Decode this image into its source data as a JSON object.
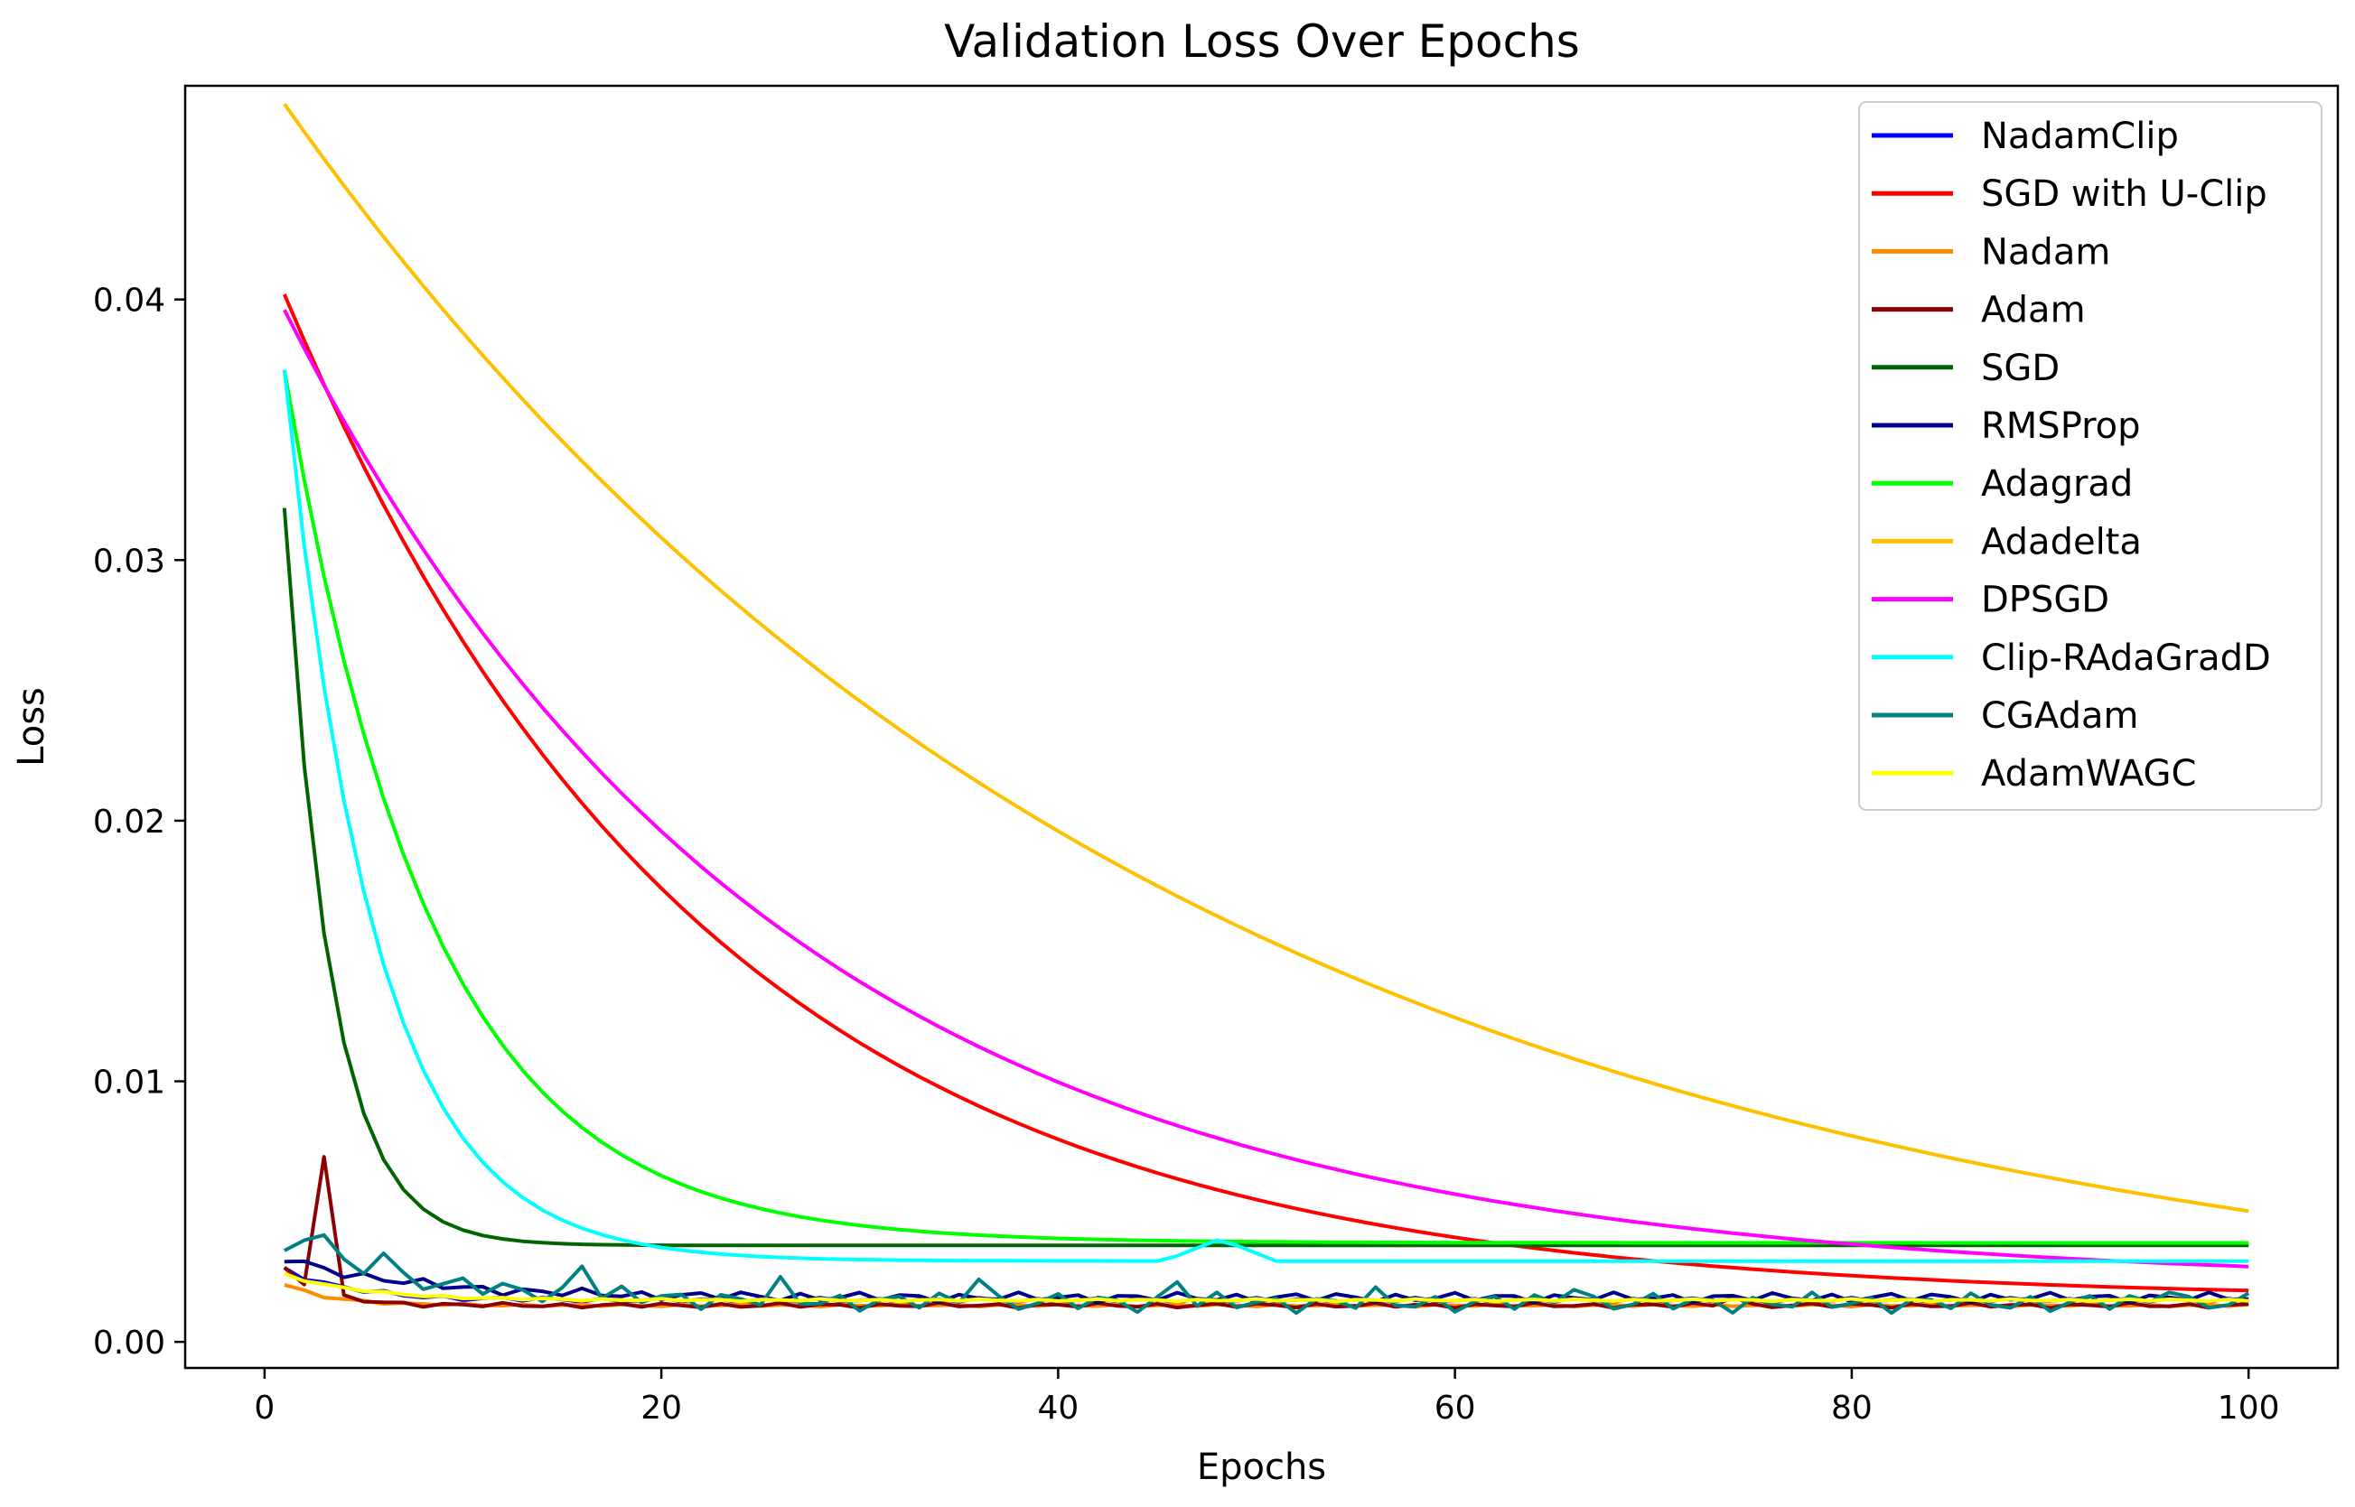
{
  "chart_data": {
    "type": "line",
    "title": "Validation Loss Over Epochs",
    "xlabel": "Epochs",
    "ylabel": "Loss",
    "xlim": [
      -4,
      104.5
    ],
    "ylim": [
      -0.001,
      0.0482
    ],
    "xticks": [
      0,
      20,
      40,
      60,
      80,
      100
    ],
    "yticks": [
      0.0,
      0.01,
      0.02,
      0.03,
      0.04
    ],
    "xtick_labels": [
      "0",
      "20",
      "40",
      "60",
      "80",
      "100"
    ],
    "ytick_labels": [
      "0.00",
      "0.01",
      "0.02",
      "0.03",
      "0.04"
    ],
    "legend_position": "top-right",
    "grid": false,
    "series": [
      {
        "name": "NadamClip",
        "color": "#0000ff",
        "model": "flat",
        "start": 0.0028,
        "end": 0.0016,
        "k": 0.3,
        "noise": 0.0001,
        "spikes": []
      },
      {
        "name": "SGD with U-Clip",
        "color": "#ff0000",
        "model": "exp",
        "start": 0.0402,
        "floor": 0.0016,
        "k": 0.047,
        "noise": 0,
        "spikes": []
      },
      {
        "name": "Nadam",
        "color": "#ff8c00",
        "model": "flat",
        "start": 0.0022,
        "end": 0.0014,
        "k": 0.4,
        "noise": 5e-05,
        "spikes": [
          [
            3,
            0.0017
          ]
        ]
      },
      {
        "name": "Adam",
        "color": "#8b0000",
        "model": "flat",
        "start": 0.0028,
        "end": 0.0014,
        "k": 0.5,
        "noise": 0.0001,
        "spikes": [
          [
            2,
            0.0022
          ],
          [
            3,
            0.0071
          ],
          [
            4,
            0.0018
          ],
          [
            74,
            0.0017
          ]
        ]
      },
      {
        "name": "SGD",
        "color": "#006400",
        "model": "exp",
        "start": 0.032,
        "floor": 0.0037,
        "k": 0.43,
        "noise": 0,
        "spikes": []
      },
      {
        "name": "RMSProp",
        "color": "#00008b",
        "model": "flat",
        "start": 0.0032,
        "end": 0.0017,
        "k": 0.15,
        "noise": 0.0002,
        "spikes": []
      },
      {
        "name": "Adagrad",
        "color": "#00ff00",
        "model": "exp",
        "start": 0.0373,
        "floor": 0.0038,
        "k": 0.135,
        "noise": 0,
        "spikes": []
      },
      {
        "name": "Adadelta",
        "color": "#ffc000",
        "model": "exp",
        "start": 0.0475,
        "floor": 0.0,
        "k": 0.0227,
        "noise": 0,
        "spikes": []
      },
      {
        "name": "DPSGD",
        "color": "#ff00ff",
        "model": "exp",
        "start": 0.0396,
        "floor": 0.0022,
        "k": 0.0403,
        "noise": 0,
        "spikes": []
      },
      {
        "name": "Clip-RAdaGradD",
        "color": "#00ffff",
        "model": "exp",
        "start": 0.0373,
        "floor": 0.0031,
        "k": 0.22,
        "noise": 0,
        "spikes": [
          [
            46,
            0.0033
          ],
          [
            47,
            0.0036
          ],
          [
            48,
            0.0039
          ],
          [
            49,
            0.0037
          ],
          [
            50,
            0.0034
          ]
        ]
      },
      {
        "name": "CGAdam",
        "color": "#008080",
        "model": "flat",
        "start": 0.0034,
        "end": 0.0015,
        "k": 0.12,
        "noise": 0.0004,
        "spikes": [
          [
            2,
            0.0039
          ],
          [
            3,
            0.0041
          ],
          [
            6,
            0.0034
          ],
          [
            16,
            0.0029
          ],
          [
            26,
            0.0025
          ],
          [
            36,
            0.0024
          ],
          [
            46,
            0.0023
          ],
          [
            56,
            0.0021
          ],
          [
            66,
            0.002
          ],
          [
            96,
            0.0019
          ]
        ]
      },
      {
        "name": "AdamWAGC",
        "color": "#ffff00",
        "model": "flat",
        "start": 0.0026,
        "end": 0.0016,
        "k": 0.25,
        "noise": 5e-05,
        "spikes": []
      }
    ]
  }
}
